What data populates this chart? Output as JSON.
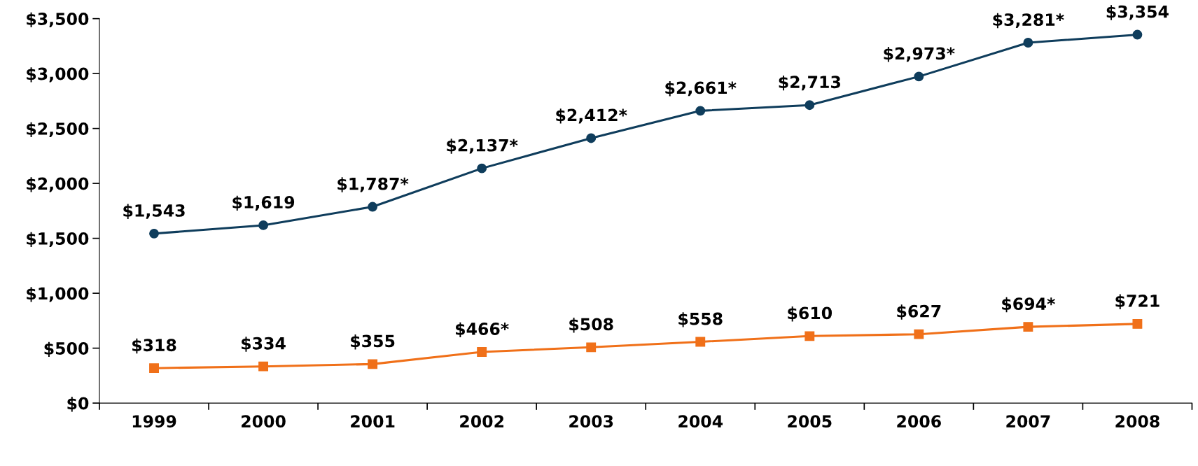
{
  "chart_data": {
    "type": "line",
    "categories": [
      "1999",
      "2000",
      "2001",
      "2002",
      "2003",
      "2004",
      "2005",
      "2006",
      "2007",
      "2008"
    ],
    "series": [
      {
        "color": "#0f3d5c",
        "marker": "circle",
        "values": [
          1543,
          1619,
          1787,
          2137,
          2412,
          2661,
          2713,
          2973,
          3281,
          3354
        ],
        "value_labels": [
          "$1,543",
          "$1,619",
          "$1,787*",
          "$2,137*",
          "$2,412*",
          "$2,661*",
          "$2,713",
          "$2,973*",
          "$3,281*",
          "$3,354"
        ]
      },
      {
        "color": "#f07019",
        "marker": "square",
        "values": [
          318,
          334,
          355,
          466,
          508,
          558,
          610,
          627,
          694,
          721
        ],
        "value_labels": [
          "$318",
          "$334",
          "$355",
          "$466*",
          "$508",
          "$558",
          "$610",
          "$627",
          "$694*",
          "$721"
        ]
      }
    ],
    "ylim": [
      0,
      3500
    ],
    "yticks": [
      {
        "value": 0,
        "label": "$0"
      },
      {
        "value": 500,
        "label": "$500"
      },
      {
        "value": 1000,
        "label": "$1,000"
      },
      {
        "value": 1500,
        "label": "$1,500"
      },
      {
        "value": 2000,
        "label": "$2,000"
      },
      {
        "value": 2500,
        "label": "$2,500"
      },
      {
        "value": 3000,
        "label": "$3,000"
      },
      {
        "value": 3500,
        "label": "$3,500"
      }
    ],
    "grid": false,
    "legend": false,
    "line_style": "solid"
  }
}
